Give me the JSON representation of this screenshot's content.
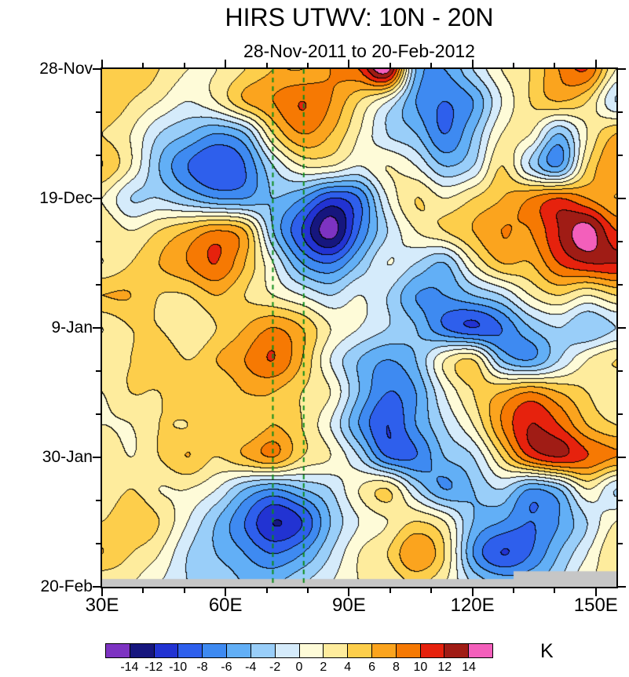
{
  "chart_data": {
    "type": "heatmap",
    "title": "HIRS UTWV: 10N - 20N",
    "subtitle": "28-Nov-2011 to 20-Feb-2012",
    "colorbar_unit": "K",
    "x_unit": "degrees east longitude",
    "x_range": [
      30,
      155
    ],
    "x": [
      30,
      37,
      44,
      51,
      58,
      65,
      72,
      79,
      86,
      93,
      100,
      107,
      113,
      120,
      127,
      134,
      141,
      148,
      155
    ],
    "x_major_ticks": [
      30,
      60,
      90,
      120,
      150
    ],
    "x_tick_labels": [
      "30E",
      "60E",
      "90E",
      "120E",
      "150E"
    ],
    "x_minor_ticks": [
      40,
      50,
      70,
      80,
      100,
      110,
      130,
      140
    ],
    "y_tick_labels": [
      "28-Nov",
      "19-Dec",
      "9-Jan",
      "30-Jan",
      "20-Feb"
    ],
    "y_major_positions": [
      0,
      0.25,
      0.5,
      0.75,
      1
    ],
    "y_minor_positions": [
      0.0833,
      0.1667,
      0.3333,
      0.4167,
      0.5833,
      0.6667,
      0.8333,
      0.9167
    ],
    "y_domain": [
      "28-Nov-2011",
      "20-Feb-2012"
    ],
    "levels": [
      -14,
      -12,
      -10,
      -8,
      -6,
      -4,
      -2,
      0,
      2,
      4,
      6,
      8,
      10,
      12,
      14
    ],
    "palette": [
      "#7D33C2",
      "#16167E",
      "#2233D2",
      "#2E5FEC",
      "#3E8AF1",
      "#62AFF6",
      "#99CEF9",
      "#D5EBFB",
      "#FEFBD8",
      "#FEEC9D",
      "#FDCE4B",
      "#FBA41E",
      "#F67903",
      "#E6220D",
      "#A01C15",
      "#F35FBB"
    ],
    "colorbar_ticks": [
      "-14",
      "-12",
      "-10",
      "-8",
      "-6",
      "-4",
      "-2",
      "0",
      "2",
      "4",
      "6",
      "8",
      "10",
      "12",
      "14"
    ],
    "contour_line_color": "#000000",
    "reference_lines": {
      "color": "#0E8C1A",
      "style": "dashed",
      "x_values": [
        71.5,
        79
      ]
    },
    "missing_color": "#C6C6C6",
    "missing_regions": [
      {
        "x0": 30,
        "x1": 155,
        "y0": 0.985,
        "y1": 1.0
      },
      {
        "x0": 130,
        "x1": 155,
        "y0": 0.97,
        "y1": 1.0
      }
    ],
    "values": [
      [
        4,
        6,
        4,
        2,
        2,
        4,
        6,
        6,
        8,
        10,
        15,
        -4,
        -6,
        -2,
        2,
        4,
        8,
        10,
        2
      ],
      [
        6,
        4,
        2,
        0,
        2,
        6,
        8,
        10,
        8,
        4,
        0,
        -6,
        -8,
        -6,
        0,
        4,
        6,
        4,
        -2
      ],
      [
        4,
        2,
        -2,
        -4,
        -6,
        -4,
        4,
        8,
        6,
        2,
        -2,
        -4,
        -8,
        -4,
        2,
        2,
        -4,
        2,
        6
      ],
      [
        6,
        2,
        -4,
        -8,
        -10,
        -8,
        -2,
        2,
        2,
        0,
        2,
        0,
        -4,
        -2,
        4,
        -2,
        -6,
        4,
        8
      ],
      [
        2,
        -2,
        -2,
        -4,
        -6,
        -6,
        -4,
        -6,
        -10,
        -8,
        0,
        4,
        2,
        4,
        6,
        8,
        10,
        8,
        6
      ],
      [
        4,
        2,
        4,
        6,
        8,
        6,
        -4,
        -10,
        -15,
        -8,
        -2,
        2,
        4,
        6,
        8,
        8,
        12,
        15,
        10
      ],
      [
        2,
        4,
        6,
        8,
        10,
        6,
        0,
        -6,
        -8,
        -4,
        0,
        -2,
        -4,
        2,
        6,
        6,
        10,
        12,
        12
      ],
      [
        6,
        6,
        4,
        4,
        6,
        4,
        2,
        0,
        -2,
        0,
        -2,
        -6,
        -6,
        -4,
        -2,
        2,
        4,
        2,
        4
      ],
      [
        2,
        4,
        4,
        2,
        4,
        6,
        8,
        6,
        2,
        0,
        -2,
        -4,
        -8,
        -10,
        -8,
        -4,
        -2,
        -4,
        -2
      ],
      [
        4,
        4,
        6,
        4,
        6,
        8,
        10,
        6,
        0,
        -4,
        -6,
        -4,
        2,
        4,
        -4,
        -6,
        -2,
        2,
        4
      ],
      [
        2,
        4,
        4,
        6,
        4,
        6,
        6,
        4,
        2,
        -4,
        -8,
        -6,
        0,
        4,
        6,
        8,
        6,
        4,
        2
      ],
      [
        2,
        2,
        4,
        4,
        6,
        4,
        6,
        4,
        0,
        -6,
        -10,
        -6,
        -2,
        2,
        8,
        12,
        10,
        6,
        4
      ],
      [
        4,
        2,
        4,
        6,
        4,
        6,
        8,
        4,
        2,
        -2,
        -8,
        -8,
        -4,
        -2,
        4,
        10,
        12,
        10,
        8
      ],
      [
        2,
        4,
        2,
        2,
        0,
        -4,
        -6,
        -4,
        -2,
        2,
        4,
        -2,
        -6,
        -4,
        -2,
        -6,
        -4,
        2,
        -2
      ],
      [
        4,
        6,
        4,
        0,
        -4,
        -8,
        -12,
        -10,
        -4,
        0,
        2,
        4,
        2,
        -4,
        -6,
        -8,
        -6,
        -2,
        2
      ],
      [
        6,
        4,
        2,
        -2,
        -4,
        -6,
        -8,
        -6,
        -2,
        2,
        4,
        8,
        4,
        -6,
        -10,
        -8,
        -4,
        0,
        4
      ],
      [
        2,
        2,
        0,
        -2,
        -2,
        -4,
        -4,
        -2,
        0,
        2,
        2,
        4,
        2,
        -2,
        -4,
        -4,
        -2,
        2,
        2
      ]
    ]
  }
}
